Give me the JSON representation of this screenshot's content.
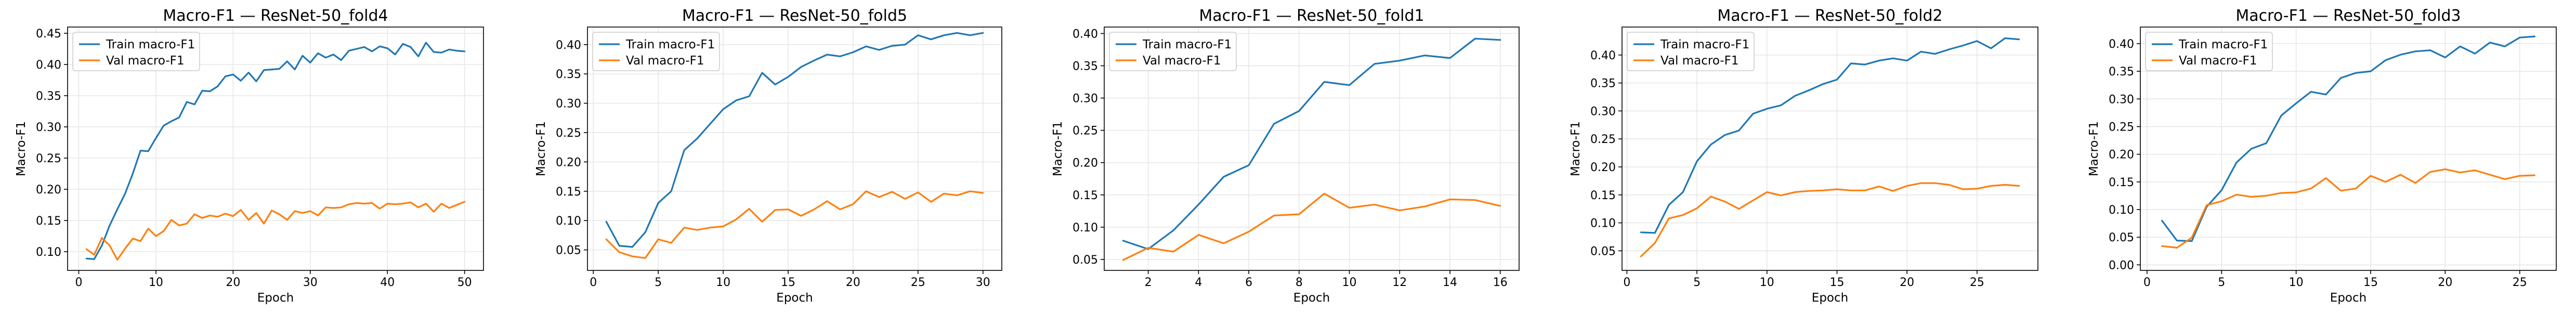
{
  "colors": {
    "train": "#1f77b4",
    "val": "#ff7f0e",
    "grid": "#e6e6e6",
    "axis": "#000000"
  },
  "chart_data": [
    {
      "type": "line",
      "title": "Macro-F1 — ResNet-50_fold4",
      "xlabel": "Epoch",
      "ylabel": "Macro-F1",
      "xlim": [
        -1.45,
        52.45
      ],
      "ylim": [
        0.07,
        0.46
      ],
      "xticks": [
        0,
        10,
        20,
        30,
        40,
        50
      ],
      "yticks": [
        0.1,
        0.15,
        0.2,
        0.25,
        0.3,
        0.35,
        0.4,
        0.45
      ],
      "grid": true,
      "legend": "top-left",
      "series": [
        {
          "name": "Train macro-F1",
          "color": "#1f77b4",
          "x": [
            1,
            2,
            3,
            4,
            5,
            6,
            7,
            8,
            9,
            10,
            11,
            12,
            13,
            14,
            15,
            16,
            17,
            18,
            19,
            20,
            21,
            22,
            23,
            24,
            25,
            26,
            27,
            28,
            29,
            30,
            31,
            32,
            33,
            34,
            35,
            36,
            37,
            38,
            39,
            40,
            41,
            42,
            43,
            44,
            45,
            46,
            47,
            48,
            49,
            50
          ],
          "y": [
            0.089,
            0.088,
            0.11,
            0.142,
            0.168,
            0.193,
            0.225,
            0.262,
            0.261,
            0.282,
            0.302,
            0.309,
            0.315,
            0.34,
            0.336,
            0.358,
            0.357,
            0.365,
            0.381,
            0.384,
            0.374,
            0.387,
            0.373,
            0.391,
            0.392,
            0.393,
            0.405,
            0.392,
            0.414,
            0.403,
            0.418,
            0.411,
            0.416,
            0.407,
            0.422,
            0.425,
            0.428,
            0.421,
            0.429,
            0.426,
            0.416,
            0.433,
            0.428,
            0.413,
            0.435,
            0.42,
            0.419,
            0.424,
            0.422,
            0.421
          ]
        },
        {
          "name": "Val macro-F1",
          "color": "#ff7f0e",
          "x": [
            1,
            2,
            3,
            4,
            5,
            6,
            7,
            8,
            9,
            10,
            11,
            12,
            13,
            14,
            15,
            16,
            17,
            18,
            19,
            20,
            21,
            22,
            23,
            24,
            25,
            26,
            27,
            28,
            29,
            30,
            31,
            32,
            33,
            34,
            35,
            36,
            37,
            38,
            39,
            40,
            41,
            42,
            43,
            44,
            45,
            46,
            47,
            48,
            49,
            50
          ],
          "y": [
            0.104,
            0.095,
            0.122,
            0.11,
            0.087,
            0.105,
            0.121,
            0.117,
            0.137,
            0.125,
            0.133,
            0.151,
            0.142,
            0.145,
            0.16,
            0.154,
            0.158,
            0.156,
            0.161,
            0.157,
            0.167,
            0.151,
            0.162,
            0.145,
            0.166,
            0.16,
            0.151,
            0.165,
            0.162,
            0.165,
            0.158,
            0.171,
            0.17,
            0.171,
            0.176,
            0.178,
            0.177,
            0.178,
            0.169,
            0.177,
            0.176,
            0.177,
            0.179,
            0.171,
            0.177,
            0.164,
            0.177,
            0.17,
            0.175,
            0.18
          ]
        }
      ]
    },
    {
      "type": "line",
      "title": "Macro-F1 — ResNet-50_fold5",
      "xlabel": "Epoch",
      "ylabel": "Macro-F1",
      "xlim": [
        -0.45,
        31.45
      ],
      "ylim": [
        0.015,
        0.43
      ],
      "xticks": [
        0,
        5,
        10,
        15,
        20,
        25,
        30
      ],
      "yticks": [
        0.05,
        0.1,
        0.15,
        0.2,
        0.25,
        0.3,
        0.35,
        0.4
      ],
      "grid": true,
      "legend": "top-left",
      "series": [
        {
          "name": "Train macro-F1",
          "color": "#1f77b4",
          "x": [
            1,
            2,
            3,
            4,
            5,
            6,
            7,
            8,
            9,
            10,
            11,
            12,
            13,
            14,
            15,
            16,
            17,
            18,
            19,
            20,
            21,
            22,
            23,
            24,
            25,
            26,
            27,
            28,
            29,
            30
          ],
          "y": [
            0.098,
            0.057,
            0.055,
            0.08,
            0.13,
            0.15,
            0.22,
            0.24,
            0.265,
            0.29,
            0.305,
            0.312,
            0.352,
            0.332,
            0.345,
            0.362,
            0.373,
            0.383,
            0.38,
            0.387,
            0.397,
            0.391,
            0.398,
            0.4,
            0.416,
            0.409,
            0.416,
            0.42,
            0.416,
            0.42
          ]
        },
        {
          "name": "Val macro-F1",
          "color": "#ff7f0e",
          "x": [
            1,
            2,
            3,
            4,
            5,
            6,
            7,
            8,
            9,
            10,
            11,
            12,
            13,
            14,
            15,
            16,
            17,
            18,
            19,
            20,
            21,
            22,
            23,
            24,
            25,
            26,
            27,
            28,
            29,
            30
          ],
          "y": [
            0.068,
            0.046,
            0.039,
            0.036,
            0.068,
            0.062,
            0.088,
            0.084,
            0.088,
            0.09,
            0.102,
            0.12,
            0.098,
            0.118,
            0.119,
            0.108,
            0.119,
            0.133,
            0.119,
            0.128,
            0.15,
            0.14,
            0.149,
            0.137,
            0.148,
            0.132,
            0.146,
            0.143,
            0.15,
            0.147
          ]
        }
      ]
    },
    {
      "type": "line",
      "title": "Macro-F1 — ResNet-50_fold1",
      "xlabel": "Epoch",
      "ylabel": "Macro-F1",
      "xlim": [
        0.25,
        16.75
      ],
      "ylim": [
        0.033,
        0.41
      ],
      "xticks": [
        2,
        4,
        6,
        8,
        10,
        12,
        14,
        16
      ],
      "yticks": [
        0.05,
        0.1,
        0.15,
        0.2,
        0.25,
        0.3,
        0.35,
        0.4
      ],
      "grid": true,
      "legend": "top-left",
      "series": [
        {
          "name": "Train macro-F1",
          "color": "#1f77b4",
          "x": [
            1,
            2,
            3,
            4,
            5,
            6,
            7,
            8,
            9,
            10,
            11,
            12,
            13,
            14,
            15,
            16
          ],
          "y": [
            0.079,
            0.066,
            0.095,
            0.135,
            0.178,
            0.196,
            0.26,
            0.28,
            0.325,
            0.32,
            0.353,
            0.358,
            0.366,
            0.362,
            0.392,
            0.39
          ]
        },
        {
          "name": "Val macro-F1",
          "color": "#ff7f0e",
          "x": [
            1,
            2,
            3,
            4,
            5,
            6,
            7,
            8,
            9,
            10,
            11,
            12,
            13,
            14,
            15,
            16
          ],
          "y": [
            0.049,
            0.068,
            0.062,
            0.088,
            0.075,
            0.093,
            0.118,
            0.12,
            0.152,
            0.13,
            0.135,
            0.126,
            0.132,
            0.143,
            0.142,
            0.133
          ]
        }
      ]
    },
    {
      "type": "line",
      "title": "Macro-F1 — ResNet-50_fold2",
      "xlabel": "Epoch",
      "ylabel": "Macro-F1",
      "xlim": [
        -0.35,
        29.35
      ],
      "ylim": [
        0.015,
        0.45
      ],
      "xticks": [
        0,
        5,
        10,
        15,
        20,
        25
      ],
      "yticks": [
        0.05,
        0.1,
        0.15,
        0.2,
        0.25,
        0.3,
        0.35,
        0.4
      ],
      "grid": true,
      "legend": "top-left",
      "series": [
        {
          "name": "Train macro-F1",
          "color": "#1f77b4",
          "x": [
            1,
            2,
            3,
            4,
            5,
            6,
            7,
            8,
            9,
            10,
            11,
            12,
            13,
            14,
            15,
            16,
            17,
            18,
            19,
            20,
            21,
            22,
            23,
            24,
            25,
            26,
            27,
            28
          ],
          "y": [
            0.083,
            0.082,
            0.132,
            0.155,
            0.21,
            0.24,
            0.257,
            0.265,
            0.295,
            0.304,
            0.31,
            0.327,
            0.337,
            0.348,
            0.356,
            0.385,
            0.383,
            0.39,
            0.394,
            0.39,
            0.406,
            0.402,
            0.41,
            0.417,
            0.425,
            0.412,
            0.43,
            0.428
          ]
        },
        {
          "name": "Val macro-F1",
          "color": "#ff7f0e",
          "x": [
            1,
            2,
            3,
            4,
            5,
            6,
            7,
            8,
            9,
            10,
            11,
            12,
            13,
            14,
            15,
            16,
            17,
            18,
            19,
            20,
            21,
            22,
            23,
            24,
            25,
            26,
            27,
            28
          ],
          "y": [
            0.04,
            0.064,
            0.108,
            0.114,
            0.126,
            0.147,
            0.138,
            0.125,
            0.14,
            0.155,
            0.149,
            0.155,
            0.157,
            0.158,
            0.16,
            0.158,
            0.158,
            0.165,
            0.157,
            0.166,
            0.171,
            0.171,
            0.168,
            0.16,
            0.161,
            0.166,
            0.168,
            0.166
          ]
        }
      ]
    },
    {
      "type": "line",
      "title": "Macro-F1 — ResNet-50_fold3",
      "xlabel": "Epoch",
      "ylabel": "Macro-F1",
      "xlim": [
        -0.45,
        27.45
      ],
      "ylim": [
        -0.01,
        0.43
      ],
      "xticks": [
        0,
        5,
        10,
        15,
        20,
        25
      ],
      "yticks": [
        0.0,
        0.05,
        0.1,
        0.15,
        0.2,
        0.25,
        0.3,
        0.35,
        0.4
      ],
      "grid": true,
      "legend": "top-left",
      "series": [
        {
          "name": "Train macro-F1",
          "color": "#1f77b4",
          "x": [
            1,
            2,
            3,
            4,
            5,
            6,
            7,
            8,
            9,
            10,
            11,
            12,
            13,
            14,
            15,
            16,
            17,
            18,
            19,
            20,
            21,
            22,
            23,
            24,
            25,
            26
          ],
          "y": [
            0.08,
            0.044,
            0.043,
            0.105,
            0.135,
            0.185,
            0.21,
            0.22,
            0.27,
            0.292,
            0.313,
            0.308,
            0.338,
            0.347,
            0.35,
            0.37,
            0.38,
            0.386,
            0.388,
            0.375,
            0.395,
            0.382,
            0.402,
            0.395,
            0.411,
            0.413
          ]
        },
        {
          "name": "Val macro-F1",
          "color": "#ff7f0e",
          "x": [
            1,
            2,
            3,
            4,
            5,
            6,
            7,
            8,
            9,
            10,
            11,
            12,
            13,
            14,
            15,
            16,
            17,
            18,
            19,
            20,
            21,
            22,
            23,
            24,
            25,
            26
          ],
          "y": [
            0.034,
            0.031,
            0.049,
            0.108,
            0.115,
            0.127,
            0.123,
            0.125,
            0.13,
            0.131,
            0.138,
            0.157,
            0.134,
            0.138,
            0.161,
            0.15,
            0.163,
            0.148,
            0.168,
            0.173,
            0.167,
            0.171,
            0.163,
            0.155,
            0.161,
            0.162
          ]
        }
      ]
    }
  ]
}
